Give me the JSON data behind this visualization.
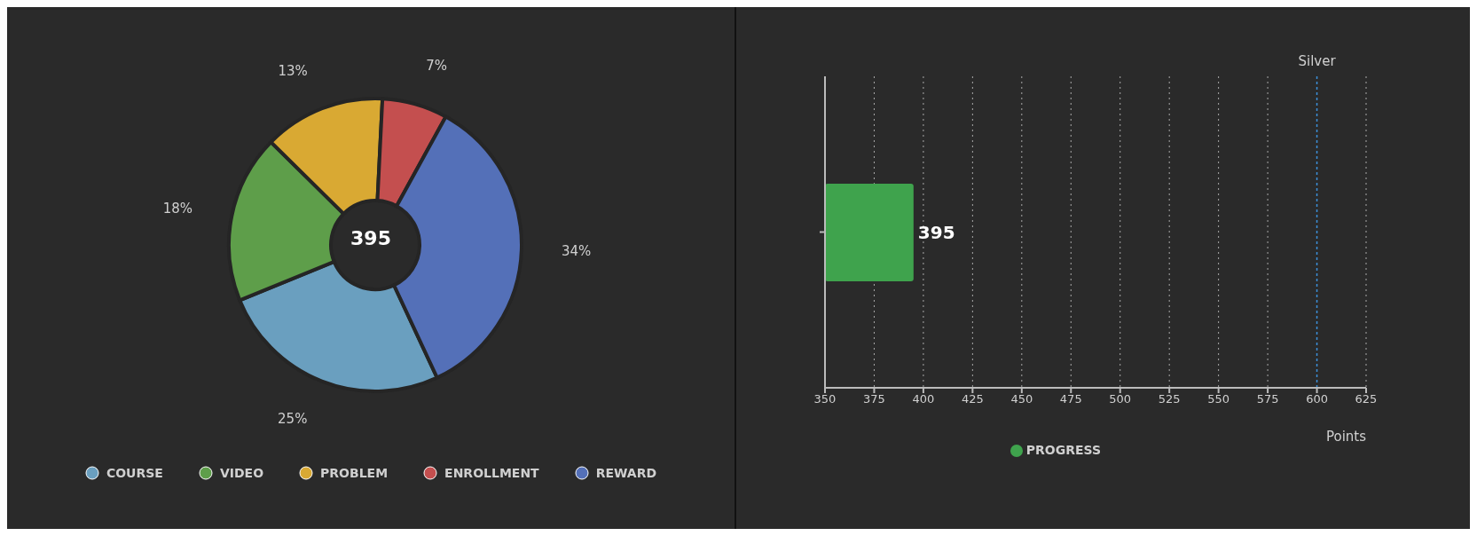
{
  "chart_data": [
    {
      "type": "donut",
      "categories": [
        "COURSE",
        "VIDEO",
        "PROBLEM",
        "ENROLLMENT",
        "REWARD"
      ],
      "values": [
        25,
        18,
        13,
        7,
        34
      ],
      "colors": [
        "#6a9fbf",
        "#5e9e4a",
        "#d9a933",
        "#c44f4f",
        "#5470b8"
      ],
      "value_labels": [
        "25%",
        "18%",
        "13%",
        "7%",
        "34%"
      ],
      "annotations": [
        "395"
      ],
      "legend": "bottom"
    },
    {
      "type": "bar",
      "orientation": "horizontal",
      "categories": [
        null
      ],
      "series": [
        {
          "name": "PROGRESS",
          "color": "#3fa34d",
          "values": [
            395
          ]
        }
      ],
      "xlim": [
        350,
        625
      ],
      "xticks": [
        350,
        375,
        400,
        425,
        450,
        475,
        500,
        525,
        550,
        575,
        600,
        625
      ],
      "xlabel": "Points",
      "grid": "x",
      "data_labels": true,
      "legend": "bottom",
      "ref_lines": [
        {
          "axis": "x",
          "value": 600,
          "label": "Silver",
          "color": "#3b8fd9",
          "line_style": "dashed"
        }
      ]
    }
  ]
}
